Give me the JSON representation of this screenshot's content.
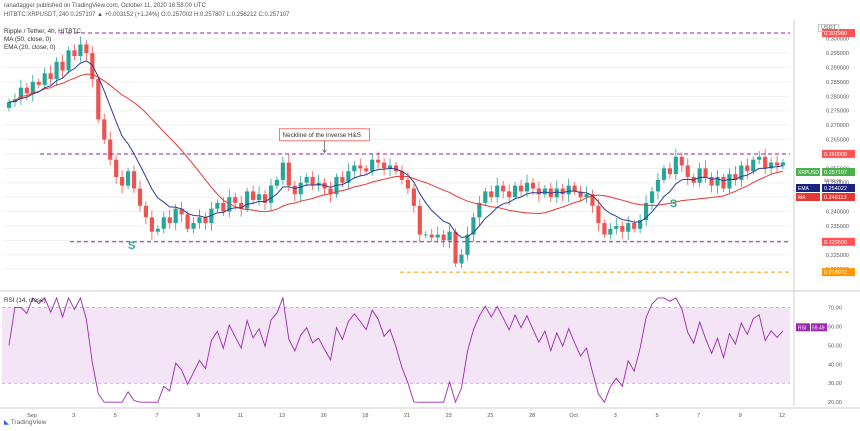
{
  "header": {
    "publisher": "ranadagger published on TradingView.com, October 11, 2020 16:58:00 UTC",
    "symbol_line": "HITBTC:XRPUSDT, 240  0.257107  ▲ +0.003152 (+1.24%)  O:0.257002  H:0.257807  L:0.256212  C:0.257107"
  },
  "legend": {
    "title": "Ripple / Tether, 4h, HITBTC",
    "ma_label": "MA (50, close, 0)",
    "ema_label": "EMA (20, close, 0)",
    "rsi_label": "RSI (14, close)"
  },
  "currency_badge": "USDT",
  "footer": {
    "brand": "TradingView"
  },
  "colors": {
    "up": "#26a69a",
    "down": "#ef5350",
    "ema": "#2a3f8f",
    "ma": "#e53935",
    "dash_purple": "#8e24aa",
    "dash_orange": "#ff9800",
    "rsi_line": "#9c27b0",
    "rsi_fill": "#f3e5f5",
    "label_green": "#4caf50",
    "label_navy": "#1a237e",
    "annotation": "#ff5252",
    "s_label": "#26a69a"
  },
  "chart_data": [
    {
      "type": "candlestick",
      "title": "Ripple / Tether, 4h, HITBTC",
      "ylim": [
        0.2145,
        0.3065
      ],
      "y_ticks": [
        "0.300000",
        "0.295000",
        "0.290000",
        "0.285000",
        "0.280000",
        "0.275000",
        "0.270000",
        "0.265000",
        "0.260000",
        "0.255000",
        "0.250000",
        "0.245000",
        "0.240000",
        "0.235000",
        "0.230000",
        "0.225000",
        "0.220000"
      ],
      "x_ticks": [
        "Sep",
        "3",
        "5",
        "7",
        "9",
        "11",
        "13",
        "16",
        "18",
        "21",
        "23",
        "25",
        "28",
        "Oct",
        "3",
        "5",
        "7",
        "9",
        "12"
      ],
      "closes": [
        0.278,
        0.279,
        0.283,
        0.281,
        0.285,
        0.284,
        0.288,
        0.286,
        0.292,
        0.289,
        0.296,
        0.294,
        0.298,
        0.295,
        0.286,
        0.272,
        0.265,
        0.258,
        0.252,
        0.249,
        0.254,
        0.248,
        0.242,
        0.238,
        0.233,
        0.234,
        0.238,
        0.236,
        0.241,
        0.239,
        0.234,
        0.236,
        0.238,
        0.236,
        0.241,
        0.243,
        0.24,
        0.245,
        0.243,
        0.241,
        0.247,
        0.244,
        0.246,
        0.243,
        0.249,
        0.251,
        0.257,
        0.249,
        0.246,
        0.25,
        0.252,
        0.249,
        0.25,
        0.248,
        0.246,
        0.252,
        0.25,
        0.254,
        0.256,
        0.255,
        0.254,
        0.258,
        0.257,
        0.255,
        0.256,
        0.254,
        0.251,
        0.248,
        0.242,
        0.232,
        0.232,
        0.231,
        0.232,
        0.23,
        0.233,
        0.222,
        0.225,
        0.232,
        0.238,
        0.243,
        0.247,
        0.245,
        0.249,
        0.247,
        0.245,
        0.249,
        0.247,
        0.25,
        0.248,
        0.246,
        0.248,
        0.245,
        0.248,
        0.246,
        0.249,
        0.247,
        0.245,
        0.246,
        0.242,
        0.236,
        0.232,
        0.234,
        0.235,
        0.233,
        0.236,
        0.234,
        0.237,
        0.243,
        0.247,
        0.251,
        0.255,
        0.253,
        0.259,
        0.256,
        0.252,
        0.25,
        0.255,
        0.252,
        0.249,
        0.252,
        0.248,
        0.253,
        0.251,
        0.256,
        0.254,
        0.258,
        0.259,
        0.255,
        0.257,
        0.256,
        0.257107
      ],
      "levels": [
        {
          "value": 0.30198,
          "label": "0.301980",
          "style": "dash_purple"
        },
        {
          "value": 0.26,
          "label": "0.260000",
          "style": "dash_purple"
        },
        {
          "value": 0.2295,
          "label": "0.229500",
          "style": "dash_purple"
        },
        {
          "value": 0.21897,
          "label": "0.218972",
          "style": "dash_orange"
        }
      ],
      "price_labels": [
        {
          "value": 0.257107,
          "label": "0.257107",
          "symbol": "XRPUSDT",
          "sub": "03:01:06",
          "style": "label_green"
        },
        {
          "value": 0.254022,
          "label": "0.254022",
          "symbol": "EMA",
          "style": "label_navy"
        },
        {
          "value": 0.248113,
          "label": "0.248113",
          "symbol": "MA",
          "style": "ma"
        }
      ],
      "annotations": [
        {
          "text": "Neckline of the inverse H&S",
          "x_index": 53,
          "y": 0.267
        },
        {
          "text": "S",
          "x_index": 20,
          "y": 0.227
        },
        {
          "text": "S",
          "x_index": 111,
          "y": 0.2415
        }
      ]
    },
    {
      "type": "line",
      "title": "RSI (14, close)",
      "ylim": [
        18,
        76
      ],
      "y_ticks": [
        "70.00",
        "60.00",
        "50.00",
        "40.00",
        "30.00",
        "20.00"
      ],
      "band": [
        30,
        70
      ],
      "current_label": "59.49",
      "values": []
    }
  ]
}
